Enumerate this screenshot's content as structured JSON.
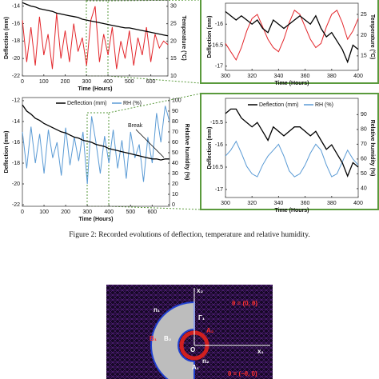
{
  "chart_data": [
    {
      "type": "line",
      "x": [
        0,
        20,
        40,
        60,
        80,
        100,
        120,
        140,
        160,
        180,
        200,
        220,
        240,
        260,
        280,
        300,
        320,
        340,
        360,
        380,
        400,
        420,
        440,
        460,
        480,
        500,
        520,
        540,
        560,
        580,
        600,
        620,
        640,
        660,
        680
      ],
      "xlim": [
        0,
        680
      ],
      "xticks": [
        0,
        100,
        200,
        300,
        400,
        500,
        600
      ],
      "xlabel": "Time (Hours)",
      "ylim": [
        -22,
        -13.3
      ],
      "yticks": [
        -14,
        -16,
        -18,
        -20,
        -22
      ],
      "ylabel": "Deflection (mm)",
      "y2lim": [
        10,
        31.8
      ],
      "y2ticks": [
        10,
        15,
        20,
        25,
        30
      ],
      "y2label": "Temperature (°C)",
      "series": [
        {
          "color": "#000000",
          "values": [
            -13.6,
            -13.8,
            -14.0,
            -14.1,
            -14.3,
            -14.4,
            -14.5,
            -14.6,
            -14.8,
            -14.9,
            -15.0,
            -15.1,
            -15.2,
            -15.3,
            -15.5,
            -15.6,
            -15.7,
            -15.8,
            -15.9,
            -16.0,
            -16.1,
            -16.2,
            -16.3,
            -16.4,
            -16.5,
            -16.5,
            -16.6,
            -16.7,
            -16.8,
            -16.9,
            -17.0,
            -17.1,
            -17.2,
            -17.3,
            -17.4
          ]
        },
        {
          "color": "#e3262b",
          "axis": "y2",
          "values": [
            26,
            14,
            24,
            13,
            27,
            16,
            22,
            12,
            28,
            15,
            23,
            14,
            25,
            17,
            21,
            13,
            26,
            30,
            14,
            22,
            16,
            24,
            12,
            20,
            15,
            23,
            13,
            21,
            16,
            24,
            14,
            22,
            18,
            20,
            19
          ]
        }
      ]
    },
    {
      "type": "line",
      "x": [
        300,
        304,
        308,
        312,
        316,
        320,
        324,
        328,
        332,
        336,
        340,
        344,
        348,
        352,
        356,
        360,
        364,
        368,
        372,
        376,
        380,
        384,
        388,
        392,
        396,
        400
      ],
      "xlim": [
        300,
        400
      ],
      "xticks": [
        300,
        320,
        340,
        360,
        380,
        400
      ],
      "xlabel": "Time (Hours)",
      "ylim": [
        -17.1,
        -15.5
      ],
      "yticks": [
        -16,
        -16.5,
        -17
      ],
      "ylabel": "Deflection (mm)",
      "y2lim": [
        11.5,
        27.7
      ],
      "y2ticks": [
        15,
        20,
        25
      ],
      "y2label": "Temperature (°C)",
      "series": [
        {
          "color": "#000000",
          "values": [
            -15.7,
            -15.8,
            -15.9,
            -15.8,
            -15.9,
            -16.0,
            -15.9,
            -16.1,
            -16.2,
            -15.9,
            -16.0,
            -16.1,
            -16.0,
            -15.9,
            -15.8,
            -15.9,
            -16.0,
            -15.8,
            -16.1,
            -16.3,
            -16.2,
            -16.4,
            -16.6,
            -16.9,
            -16.5,
            -16.6
          ]
        },
        {
          "color": "#e3262b",
          "axis": "y2",
          "values": [
            18,
            16,
            14,
            17,
            21,
            24,
            25,
            22,
            19,
            17,
            16,
            19,
            23,
            26,
            25,
            22,
            19,
            17,
            18,
            22,
            25,
            26,
            23,
            19,
            21,
            24
          ]
        }
      ]
    },
    {
      "type": "line",
      "x": [
        0,
        20,
        40,
        60,
        80,
        100,
        120,
        140,
        160,
        180,
        200,
        220,
        240,
        260,
        280,
        300,
        320,
        340,
        360,
        380,
        400,
        420,
        440,
        460,
        480,
        500,
        520,
        540,
        560,
        580,
        600,
        620,
        640,
        660,
        680
      ],
      "xlim": [
        0,
        680
      ],
      "xticks": [
        0,
        100,
        200,
        300,
        400,
        500,
        600
      ],
      "xlabel": "Time (Hours)",
      "ylim": [
        -22.15,
        -11.7
      ],
      "yticks": [
        -12,
        -14,
        -16,
        -18,
        -20,
        -22
      ],
      "ylabel": "Deflection (mm)",
      "y2lim": [
        -1.5,
        103
      ],
      "y2ticks": [
        0,
        10,
        20,
        30,
        40,
        50,
        60,
        70,
        80,
        90,
        100
      ],
      "y2label": "Relative humidity (%)",
      "annotation": "Break",
      "series": [
        {
          "name": "Deflection (mm)",
          "color": "#000000",
          "values": [
            -12.4,
            -13.0,
            -13.3,
            -13.7,
            -13.9,
            -14.2,
            -14.4,
            -14.6,
            -14.8,
            -15.0,
            -15.1,
            -15.3,
            -15.5,
            -15.6,
            -15.8,
            -15.9,
            -16.0,
            -16.2,
            -16.3,
            -16.4,
            -16.6,
            -16.7,
            -16.8,
            -16.9,
            -17.0,
            -17.1,
            -17.2,
            -17.3,
            -17.4,
            -17.5,
            -17.6,
            -17.6,
            -17.7,
            -17.6,
            -17.6
          ]
        },
        {
          "name": "RH (%)",
          "color": "#5b9bd5",
          "axis": "y2",
          "values": [
            70,
            35,
            75,
            40,
            68,
            30,
            72,
            45,
            60,
            28,
            74,
            38,
            65,
            42,
            70,
            20,
            85,
            60,
            30,
            66,
            40,
            72,
            35,
            62,
            25,
            70,
            45,
            58,
            22,
            65,
            40,
            88,
            60,
            95,
            80
          ]
        }
      ]
    },
    {
      "type": "line",
      "x": [
        300,
        304,
        308,
        312,
        316,
        320,
        324,
        328,
        332,
        336,
        340,
        344,
        348,
        352,
        356,
        360,
        364,
        368,
        372,
        376,
        380,
        384,
        388,
        392,
        396,
        400
      ],
      "xlim": [
        300,
        400
      ],
      "xticks": [
        300,
        320,
        340,
        360,
        380,
        400
      ],
      "xlabel": "Time (Hours)",
      "ylim": [
        -17.18,
        -14.96
      ],
      "yticks": [
        -15.5,
        -16,
        -16.5,
        -17
      ],
      "ylabel": "Deflection (mm)",
      "y2lim": [
        34,
        101
      ],
      "y2ticks": [
        40,
        50,
        60,
        70,
        80,
        90
      ],
      "y2label": "Relative humidity (%)",
      "series": [
        {
          "name": "Deflection (mm)",
          "color": "#000000",
          "values": [
            -15.3,
            -15.2,
            -15.2,
            -15.4,
            -15.5,
            -15.6,
            -15.5,
            -15.7,
            -15.9,
            -15.6,
            -15.7,
            -15.8,
            -15.7,
            -15.6,
            -15.6,
            -15.7,
            -15.8,
            -15.7,
            -15.9,
            -16.1,
            -16.0,
            -16.2,
            -16.4,
            -16.7,
            -16.4,
            -16.5
          ]
        },
        {
          "name": "RH (%)",
          "color": "#5b9bd5",
          "axis": "y2",
          "values": [
            62,
            66,
            72,
            64,
            55,
            50,
            48,
            56,
            62,
            66,
            70,
            62,
            52,
            48,
            50,
            56,
            64,
            70,
            66,
            56,
            48,
            50,
            58,
            66,
            60,
            56
          ]
        }
      ]
    }
  ],
  "caption": "Figure 2: Recorded evolutions of deflection, temperature and relative humidity.",
  "figure3": {
    "labels": [
      "x₂",
      "θ = (0, θ)",
      "n₁",
      "Γ₁",
      "A₂",
      "O",
      "x₁",
      "B₂",
      "B₁",
      "A₁",
      "n₂",
      "θ = (−θ, 0)"
    ]
  }
}
